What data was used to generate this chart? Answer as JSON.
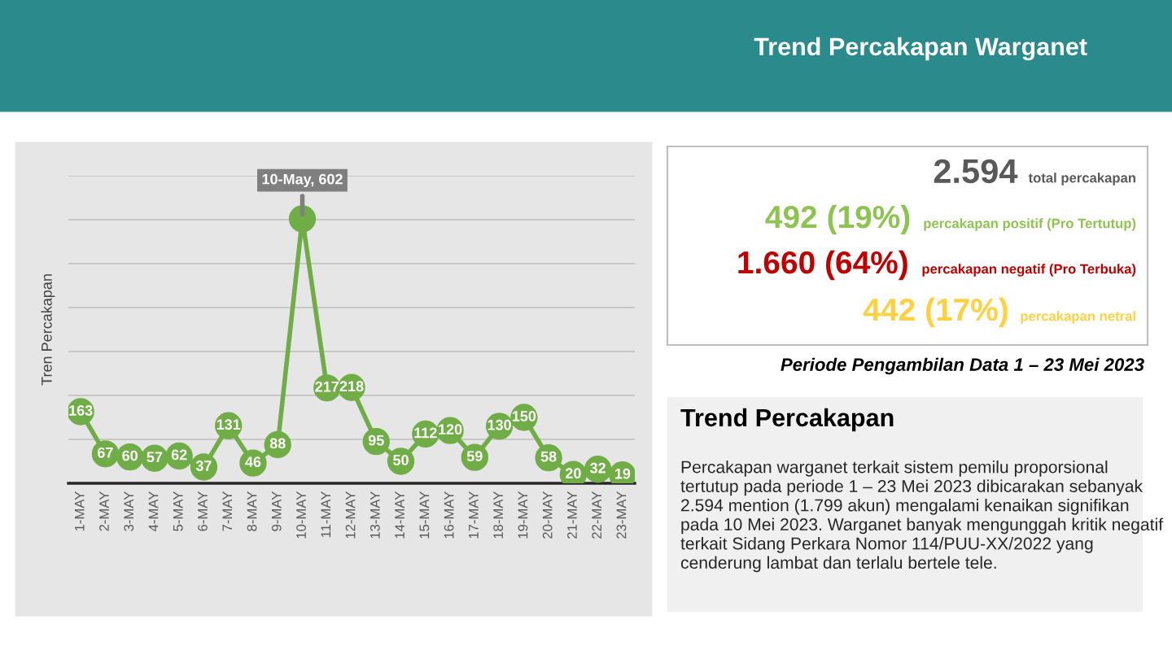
{
  "chart_data": [
    {
      "type": "line",
      "ylabel": "Tren Percakapan",
      "categories": [
        "1-MAY",
        "2-MAY",
        "3-MAY",
        "4-MAY",
        "5-MAY",
        "6-MAY",
        "7-MAY",
        "8-MAY",
        "9-MAY",
        "10-MAY",
        "11-MAY",
        "12-MAY",
        "13-MAY",
        "14-MAY",
        "15-MAY",
        "16-MAY",
        "17-MAY",
        "18-MAY",
        "19-MAY",
        "20-MAY",
        "21-MAY",
        "22-MAY",
        "23-MAY"
      ],
      "series": [
        {
          "color": "#70ad47",
          "values": [
            163,
            67,
            60,
            57,
            62,
            37,
            131,
            46,
            88,
            602,
            217,
            218,
            95,
            50,
            112,
            120,
            59,
            130,
            150,
            58,
            20,
            32,
            19
          ],
          "value_labels": [
            "163",
            "67",
            "60",
            "57",
            "62",
            "37",
            "131",
            "46",
            "88",
            "10-May, 602",
            "217",
            "218",
            "95",
            "50",
            "112",
            "120",
            "59",
            "130",
            "150",
            "58",
            "20",
            "32",
            "19"
          ]
        }
      ],
      "ylim": [
        0,
        700
      ],
      "yticks": [
        {
          "value": 0,
          "label": null
        },
        {
          "value": 100,
          "label": null
        },
        {
          "value": 200,
          "label": null
        },
        {
          "value": 300,
          "label": null
        },
        {
          "value": 400,
          "label": null
        },
        {
          "value": 500,
          "label": null
        },
        {
          "value": 600,
          "label": null
        },
        {
          "value": 700,
          "label": null
        }
      ],
      "tick_labels": "x",
      "grid": "y",
      "marker": "circle",
      "line_style": "solid"
    },
    {
      "type": "other",
      "title": "Trend Percakapan Warganet",
      "annotations": [
        "2.594",
        "total percakapan",
        "492 (19%)",
        "percakapan positif (Pro Tertutup)",
        "1.660 (64%)",
        "percakapan negatif (Pro Terbuka)",
        "442 (17%)",
        "percakapan netral",
        "Periode Pengambilan Data 1 – 23 Mei 2023"
      ]
    },
    {
      "type": "other",
      "title": "Trend Percakapan",
      "annotations": [
        "Percakapan warganet terkait sistem pemilu proporsional tertutup pada periode 1 – 23 Mei 2023 dibicarakan sebanyak 2.594 mention (1.799 akun) mengalami kenaikan signifikan pada 10 Mei 2023. Warganet banyak mengunggah kritik negatif terkait Sidang Perkara Nomor 114/PUU-XX/2022 yang cenderung lambat dan terlalu bertele tele."
      ]
    }
  ]
}
